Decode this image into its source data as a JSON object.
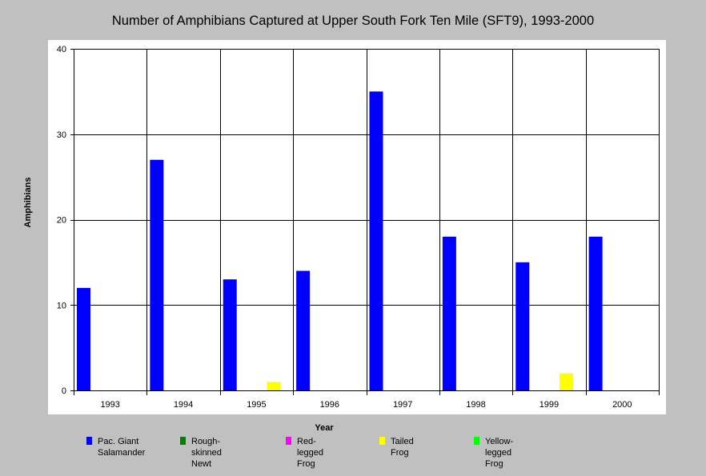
{
  "chart_data": {
    "type": "bar",
    "title": "Number of Amphibians Captured at Upper South Fork Ten Mile (SFT9), 1993-2000",
    "xlabel": "Year",
    "ylabel": "Amphibians",
    "ylim": [
      0,
      40
    ],
    "yticks": [
      0,
      10,
      20,
      30,
      40
    ],
    "grid": true,
    "legend_position": "bottom",
    "categories": [
      "1993",
      "1994",
      "1995",
      "1996",
      "1997",
      "1998",
      "1999",
      "2000"
    ],
    "series": [
      {
        "name": "Pac. Giant\nSalamander",
        "color": "#0000ff",
        "values": [
          12,
          27,
          13,
          14,
          35,
          18,
          15,
          18
        ]
      },
      {
        "name": "Rough-skinned Newt",
        "color": "#008000",
        "values": [
          0,
          0,
          0,
          0,
          0,
          0,
          0,
          0
        ]
      },
      {
        "name": "Red-legged Frog",
        "color": "#ff00ff",
        "values": [
          0,
          0,
          0,
          0,
          0,
          0,
          0,
          0
        ]
      },
      {
        "name": "Tailed Frog",
        "color": "#ffff00",
        "values": [
          0,
          0,
          1,
          0,
          0,
          0,
          2,
          0
        ]
      },
      {
        "name": "Yellow-legged Frog",
        "color": "#00ff00",
        "values": [
          0,
          0,
          0,
          0,
          0,
          0,
          0,
          0
        ]
      }
    ]
  }
}
